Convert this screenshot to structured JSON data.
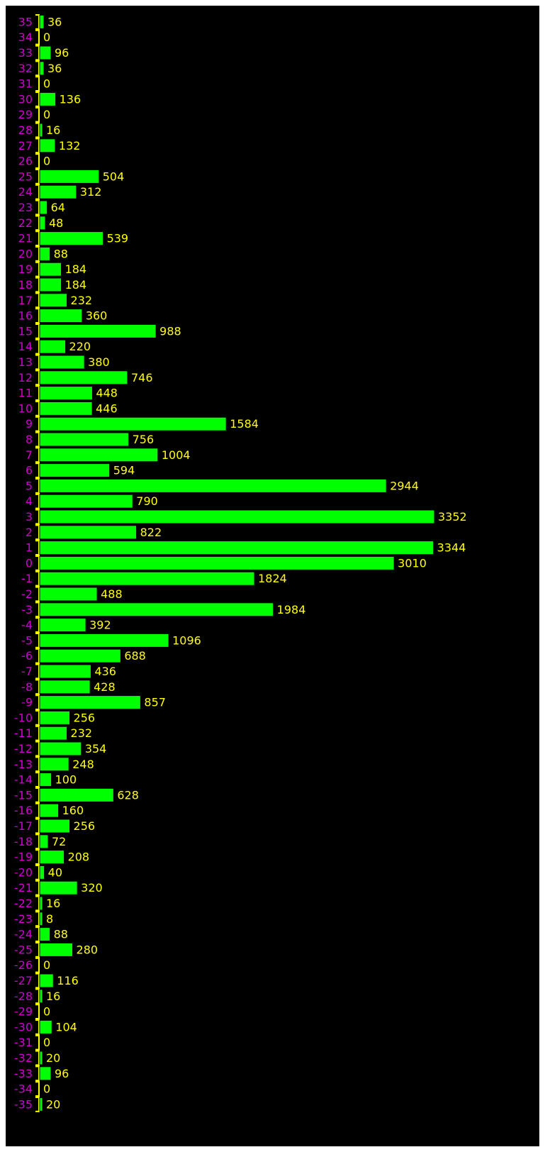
{
  "chart_data": {
    "type": "bar",
    "orientation": "horizontal",
    "title": "",
    "xlabel": "",
    "ylabel": "",
    "grid": false,
    "legend": "none",
    "categories": [
      "35",
      "34",
      "33",
      "32",
      "31",
      "30",
      "29",
      "28",
      "27",
      "26",
      "25",
      "24",
      "23",
      "22",
      "21",
      "20",
      "19",
      "18",
      "17",
      "16",
      "15",
      "14",
      "13",
      "12",
      "11",
      "10",
      "9",
      "8",
      "7",
      "6",
      "5",
      "4",
      "3",
      "2",
      "1",
      "0",
      "-1",
      "-2",
      "-3",
      "-4",
      "-5",
      "-6",
      "-7",
      "-8",
      "-9",
      "-10",
      "-11",
      "-12",
      "-13",
      "-14",
      "-15",
      "-16",
      "-17",
      "-18",
      "-19",
      "-20",
      "-21",
      "-22",
      "-23",
      "-24",
      "-25",
      "-26",
      "-27",
      "-28",
      "-29",
      "-30",
      "-31",
      "-32",
      "-33",
      "-34",
      "-35"
    ],
    "values": [
      36,
      0,
      96,
      36,
      0,
      136,
      0,
      16,
      132,
      0,
      504,
      312,
      64,
      48,
      539,
      88,
      184,
      184,
      232,
      360,
      988,
      220,
      380,
      746,
      448,
      446,
      1584,
      756,
      1004,
      594,
      2944,
      790,
      3352,
      822,
      3344,
      3010,
      1824,
      488,
      1984,
      392,
      1096,
      688,
      436,
      428,
      857,
      256,
      232,
      354,
      248,
      100,
      628,
      160,
      256,
      72,
      208,
      40,
      320,
      16,
      8,
      88,
      280,
      0,
      116,
      16,
      0,
      104,
      0,
      20,
      96,
      0,
      20
    ],
    "xlim": [
      0,
      3352
    ],
    "colors": {
      "background": "#000000",
      "bar": "#00ff00",
      "bar_outline": "#000000",
      "category_label": "#cc00cc",
      "value_label": "#ffff00",
      "axis": "#ffff00"
    }
  }
}
